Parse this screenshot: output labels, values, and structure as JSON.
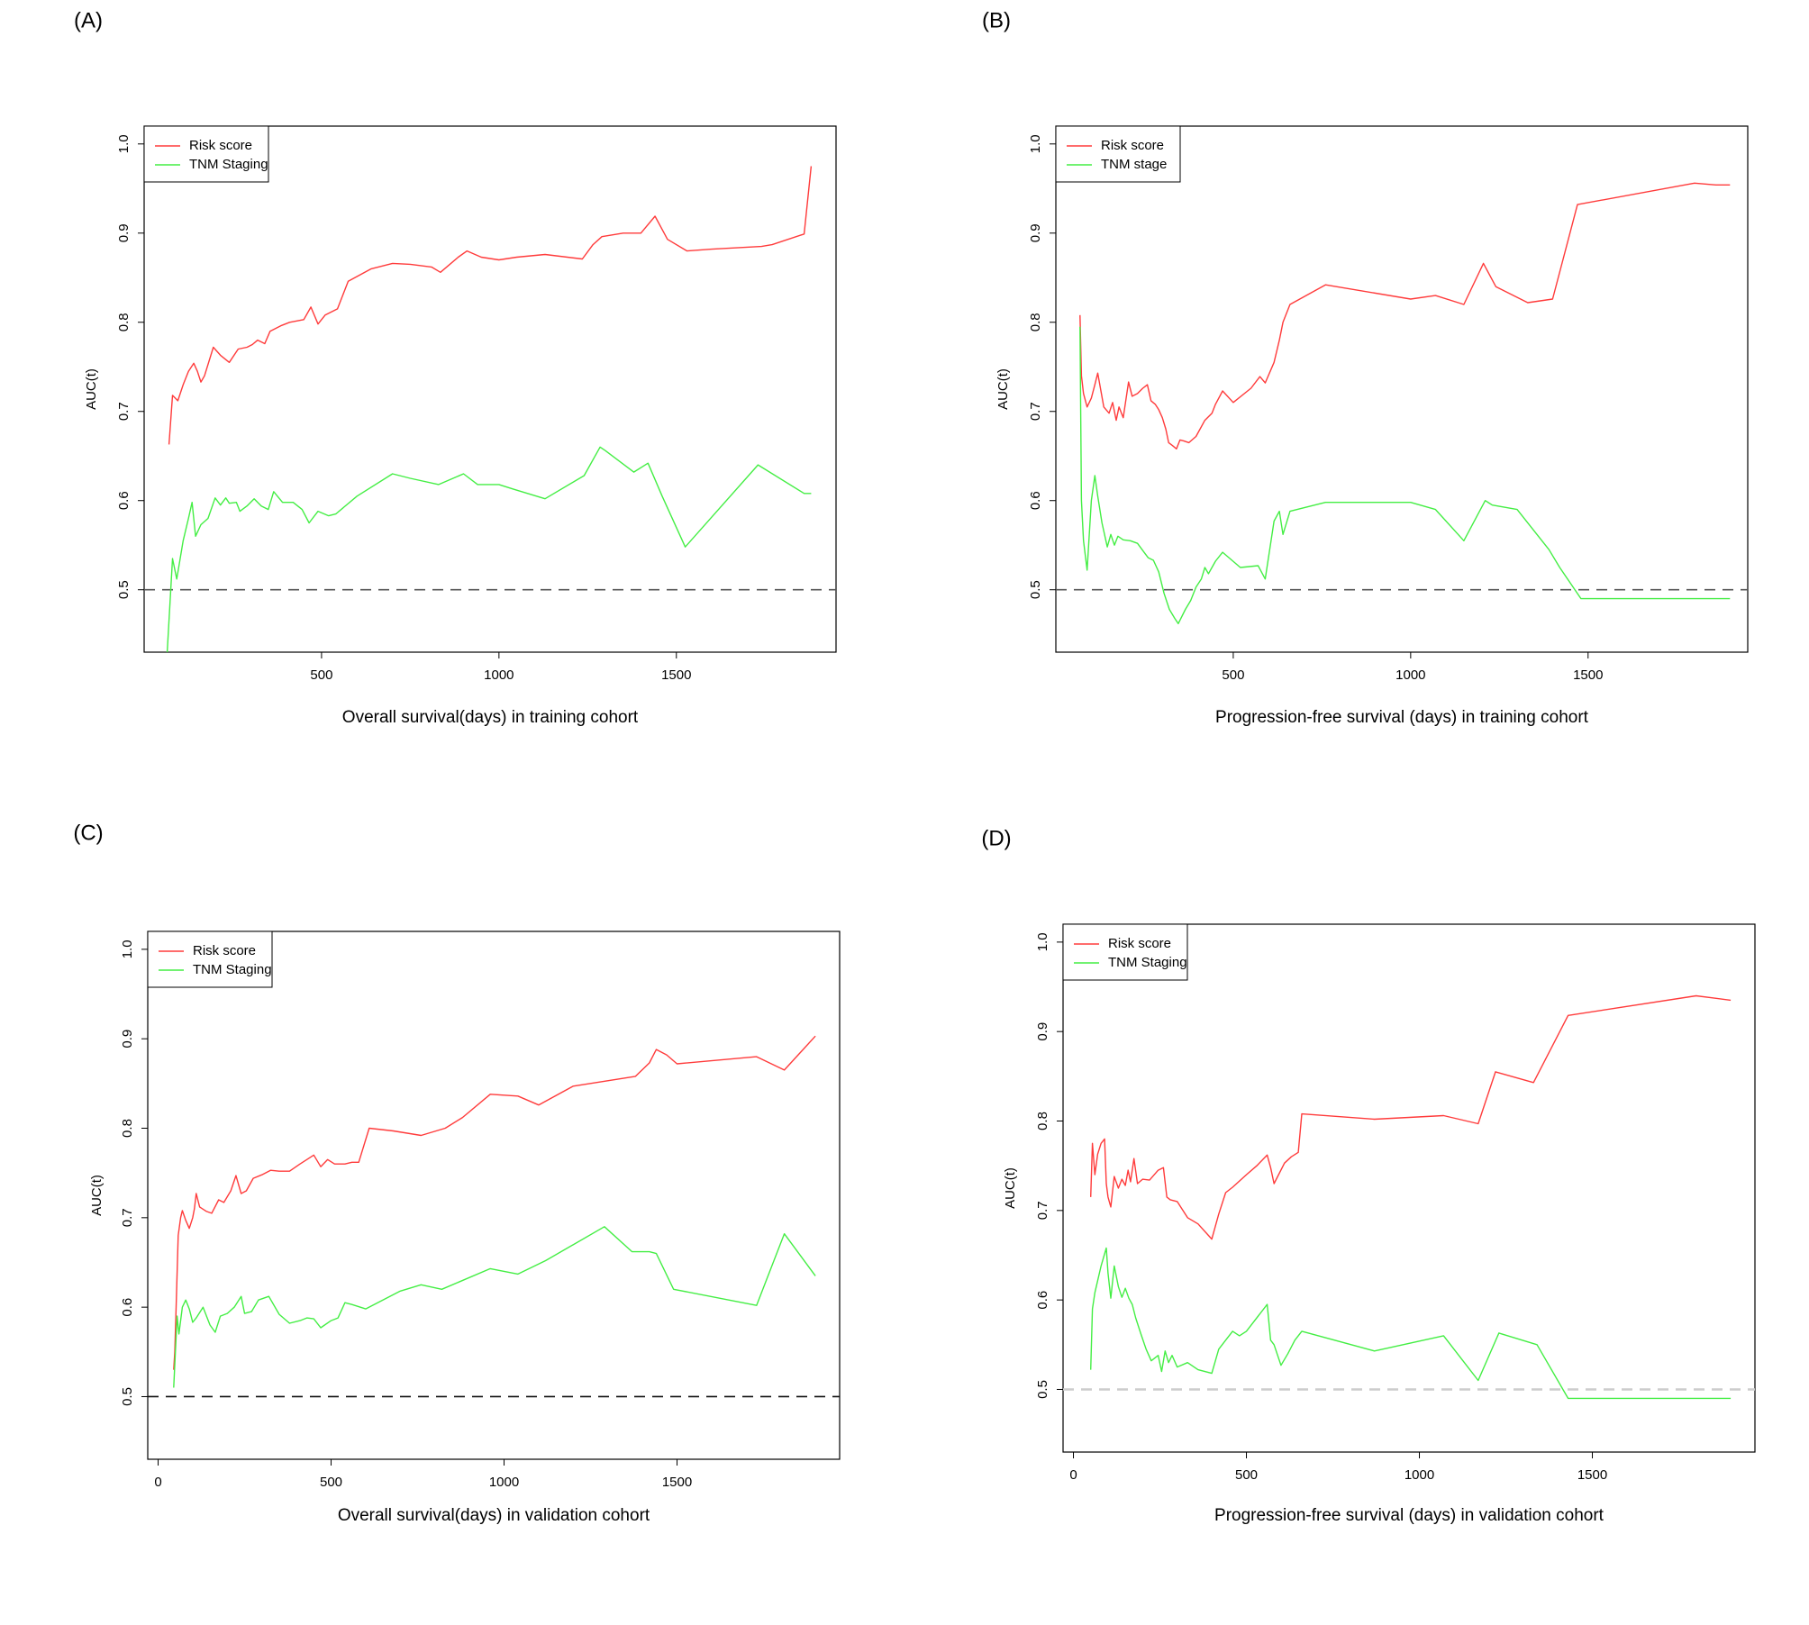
{
  "chart_data": [
    {
      "panel": "(A)",
      "type": "line",
      "xlabel": "Overall survival(days) in training cohort",
      "ylabel": "AUC(t)",
      "xticks": [
        "500",
        "1000",
        "1500"
      ],
      "yticks": [
        "0.5",
        "0.6",
        "0.7",
        "0.8",
        "0.9",
        "1.0"
      ],
      "xlim": [
        0,
        1950
      ],
      "ylim": [
        0.43,
        1.02
      ],
      "reference_line": 0.5,
      "reference_color": "#555555",
      "legend": "top-left",
      "series": [
        {
          "name": "Risk score",
          "color": "#ff3b3b",
          "x": [
            70,
            80,
            95,
            110,
            125,
            140,
            150,
            160,
            170,
            195,
            215,
            240,
            265,
            290,
            305,
            320,
            340,
            355,
            370,
            385,
            410,
            450,
            470,
            490,
            510,
            545,
            575,
            640,
            700,
            750,
            810,
            835,
            885,
            910,
            950,
            1000,
            1050,
            1130,
            1235,
            1265,
            1290,
            1350,
            1400,
            1440,
            1475,
            1530,
            1600,
            1740,
            1770,
            1860,
            1880
          ],
          "y": [
            0.663,
            0.718,
            0.712,
            0.73,
            0.745,
            0.754,
            0.745,
            0.733,
            0.74,
            0.772,
            0.763,
            0.755,
            0.77,
            0.772,
            0.775,
            0.78,
            0.776,
            0.79,
            0.793,
            0.796,
            0.8,
            0.803,
            0.817,
            0.798,
            0.808,
            0.815,
            0.846,
            0.86,
            0.866,
            0.865,
            0.862,
            0.856,
            0.873,
            0.88,
            0.873,
            0.87,
            0.873,
            0.876,
            0.871,
            0.887,
            0.896,
            0.9,
            0.9,
            0.919,
            0.893,
            0.88,
            0.882,
            0.885,
            0.887,
            0.899,
            0.975
          ]
        },
        {
          "name": "TNM Staging",
          "color": "#44ee44",
          "x": [
            65,
            80,
            92,
            110,
            125,
            135,
            145,
            160,
            180,
            200,
            215,
            230,
            240,
            260,
            270,
            290,
            310,
            330,
            350,
            365,
            390,
            420,
            445,
            465,
            490,
            520,
            540,
            600,
            700,
            750,
            830,
            900,
            940,
            1000,
            1040,
            1130,
            1240,
            1285,
            1300,
            1380,
            1420,
            1460,
            1525,
            1730,
            1860,
            1880
          ],
          "y": [
            0.43,
            0.535,
            0.512,
            0.555,
            0.58,
            0.598,
            0.56,
            0.573,
            0.58,
            0.603,
            0.595,
            0.603,
            0.597,
            0.598,
            0.588,
            0.594,
            0.602,
            0.594,
            0.59,
            0.61,
            0.598,
            0.598,
            0.59,
            0.575,
            0.588,
            0.583,
            0.585,
            0.605,
            0.63,
            0.625,
            0.618,
            0.63,
            0.618,
            0.618,
            0.613,
            0.602,
            0.628,
            0.66,
            0.656,
            0.632,
            0.642,
            0.605,
            0.548,
            0.64,
            0.608,
            0.608
          ]
        }
      ]
    },
    {
      "panel": "(B)",
      "type": "line",
      "xlabel": "Progression-free survival (days) in training cohort",
      "ylabel": "AUC(t)",
      "xticks": [
        "500",
        "1000",
        "1500"
      ],
      "yticks": [
        "0.5",
        "0.6",
        "0.7",
        "0.8",
        "0.9",
        "1.0"
      ],
      "xlim": [
        0,
        1950
      ],
      "ylim": [
        0.43,
        1.02
      ],
      "reference_line": 0.5,
      "reference_color": "#555555",
      "legend": "top-left",
      "series": [
        {
          "name": "Risk score",
          "color": "#ff3b3b",
          "x": [
            68,
            72,
            78,
            88,
            100,
            110,
            118,
            135,
            150,
            160,
            170,
            178,
            190,
            205,
            215,
            230,
            245,
            258,
            268,
            280,
            290,
            300,
            310,
            318,
            328,
            340,
            350,
            360,
            375,
            395,
            420,
            440,
            450,
            470,
            500,
            550,
            575,
            590,
            615,
            630,
            640,
            660,
            760,
            1000,
            1070,
            1150,
            1205,
            1240,
            1330,
            1400,
            1470,
            1800,
            1860,
            1900
          ],
          "y": [
            0.808,
            0.74,
            0.72,
            0.705,
            0.715,
            0.73,
            0.743,
            0.705,
            0.698,
            0.71,
            0.69,
            0.705,
            0.693,
            0.733,
            0.717,
            0.72,
            0.726,
            0.73,
            0.712,
            0.708,
            0.702,
            0.693,
            0.68,
            0.665,
            0.662,
            0.658,
            0.668,
            0.667,
            0.665,
            0.672,
            0.69,
            0.698,
            0.708,
            0.723,
            0.71,
            0.726,
            0.739,
            0.732,
            0.755,
            0.78,
            0.8,
            0.82,
            0.842,
            0.826,
            0.83,
            0.82,
            0.866,
            0.84,
            0.822,
            0.826,
            0.932,
            0.956,
            0.954,
            0.954
          ]
        },
        {
          "name": "TNM stage",
          "color": "#44ee44",
          "x": [
            68,
            72,
            78,
            88,
            100,
            110,
            118,
            130,
            145,
            155,
            165,
            175,
            190,
            210,
            230,
            260,
            275,
            290,
            305,
            320,
            335,
            345,
            365,
            380,
            395,
            410,
            420,
            430,
            450,
            470,
            520,
            570,
            590,
            615,
            630,
            640,
            660,
            760,
            1000,
            1070,
            1150,
            1210,
            1230,
            1300,
            1390,
            1420,
            1480,
            1900
          ],
          "y": [
            0.795,
            0.6,
            0.555,
            0.522,
            0.6,
            0.628,
            0.605,
            0.575,
            0.548,
            0.562,
            0.55,
            0.56,
            0.556,
            0.555,
            0.552,
            0.536,
            0.533,
            0.52,
            0.496,
            0.478,
            0.468,
            0.462,
            0.478,
            0.488,
            0.503,
            0.512,
            0.525,
            0.518,
            0.532,
            0.542,
            0.525,
            0.527,
            0.512,
            0.577,
            0.588,
            0.562,
            0.588,
            0.598,
            0.598,
            0.59,
            0.555,
            0.6,
            0.595,
            0.59,
            0.545,
            0.525,
            0.49,
            0.49
          ]
        }
      ]
    },
    {
      "panel": "(C)",
      "type": "line",
      "xlabel": "Overall survival(days) in validation cohort",
      "ylabel": "AUC(t)",
      "xticks": [
        "0",
        "500",
        "1000",
        "1500"
      ],
      "yticks": [
        "0.5",
        "0.6",
        "0.7",
        "0.8",
        "0.9",
        "1.0"
      ],
      "xlim": [
        -30,
        1970
      ],
      "ylim": [
        0.43,
        1.02
      ],
      "reference_line": 0.5,
      "reference_color": "#111111",
      "legend": "top-left",
      "series": [
        {
          "name": "Risk score",
          "color": "#ff3b3b",
          "x": [
            45,
            48,
            52,
            58,
            65,
            70,
            80,
            90,
            100,
            105,
            110,
            120,
            140,
            155,
            175,
            190,
            210,
            225,
            240,
            255,
            275,
            300,
            325,
            350,
            380,
            410,
            430,
            450,
            470,
            490,
            510,
            540,
            560,
            580,
            610,
            680,
            760,
            830,
            880,
            960,
            1040,
            1100,
            1200,
            1380,
            1420,
            1440,
            1470,
            1500,
            1730,
            1810,
            1900
          ],
          "y": [
            0.53,
            0.55,
            0.6,
            0.68,
            0.7,
            0.708,
            0.697,
            0.688,
            0.7,
            0.71,
            0.727,
            0.712,
            0.707,
            0.705,
            0.72,
            0.717,
            0.73,
            0.747,
            0.727,
            0.73,
            0.744,
            0.748,
            0.753,
            0.752,
            0.752,
            0.76,
            0.765,
            0.77,
            0.757,
            0.765,
            0.76,
            0.76,
            0.762,
            0.762,
            0.8,
            0.797,
            0.792,
            0.8,
            0.812,
            0.838,
            0.836,
            0.826,
            0.847,
            0.858,
            0.873,
            0.888,
            0.882,
            0.872,
            0.88,
            0.865,
            0.903
          ]
        },
        {
          "name": "TNM Staging",
          "color": "#44ee44",
          "x": [
            45,
            50,
            55,
            60,
            70,
            80,
            90,
            100,
            110,
            130,
            150,
            165,
            180,
            200,
            220,
            240,
            250,
            270,
            290,
            320,
            350,
            380,
            410,
            430,
            450,
            470,
            500,
            520,
            540,
            560,
            600,
            700,
            760,
            820,
            960,
            1040,
            1120,
            1290,
            1370,
            1420,
            1440,
            1490,
            1730,
            1810,
            1900
          ],
          "y": [
            0.51,
            0.55,
            0.59,
            0.57,
            0.6,
            0.608,
            0.598,
            0.583,
            0.588,
            0.6,
            0.58,
            0.572,
            0.59,
            0.593,
            0.6,
            0.612,
            0.593,
            0.595,
            0.608,
            0.612,
            0.592,
            0.582,
            0.585,
            0.588,
            0.587,
            0.577,
            0.585,
            0.588,
            0.605,
            0.603,
            0.598,
            0.618,
            0.625,
            0.62,
            0.643,
            0.637,
            0.652,
            0.69,
            0.662,
            0.662,
            0.66,
            0.62,
            0.602,
            0.682,
            0.635
          ]
        }
      ]
    },
    {
      "panel": "(D)",
      "type": "line",
      "xlabel": "Progression-free survival (days) in validation cohort",
      "ylabel": "AUC(t)",
      "xticks": [
        "0",
        "500",
        "1000",
        "1500"
      ],
      "yticks": [
        "0.5",
        "0.6",
        "0.7",
        "0.8",
        "0.9",
        "1.0"
      ],
      "xlim": [
        -30,
        1970
      ],
      "ylim": [
        0.43,
        1.02
      ],
      "reference_line": 0.5,
      "reference_color": "#cccccc",
      "legend": "top-left",
      "series": [
        {
          "name": "Risk score",
          "color": "#ff3b3b",
          "x": [
            50,
            55,
            62,
            70,
            80,
            90,
            95,
            100,
            108,
            118,
            130,
            140,
            150,
            158,
            165,
            175,
            185,
            200,
            220,
            245,
            260,
            270,
            280,
            300,
            330,
            360,
            400,
            420,
            440,
            460,
            480,
            500,
            530,
            560,
            570,
            580,
            610,
            630,
            650,
            660,
            870,
            1070,
            1170,
            1220,
            1330,
            1430,
            1800,
            1900
          ],
          "y": [
            0.715,
            0.775,
            0.74,
            0.763,
            0.775,
            0.78,
            0.73,
            0.715,
            0.704,
            0.738,
            0.725,
            0.735,
            0.728,
            0.745,
            0.732,
            0.758,
            0.73,
            0.735,
            0.734,
            0.745,
            0.748,
            0.715,
            0.712,
            0.71,
            0.692,
            0.685,
            0.668,
            0.696,
            0.72,
            0.726,
            0.733,
            0.74,
            0.75,
            0.762,
            0.748,
            0.73,
            0.753,
            0.76,
            0.765,
            0.808,
            0.802,
            0.806,
            0.797,
            0.855,
            0.843,
            0.918,
            0.94,
            0.935
          ]
        },
        {
          "name": "TNM Staging",
          "color": "#44ee44",
          "x": [
            50,
            55,
            62,
            80,
            95,
            100,
            108,
            118,
            130,
            140,
            150,
            160,
            170,
            180,
            195,
            210,
            225,
            245,
            255,
            265,
            275,
            285,
            300,
            330,
            360,
            400,
            420,
            440,
            460,
            480,
            500,
            560,
            570,
            580,
            600,
            620,
            640,
            660,
            870,
            1070,
            1170,
            1230,
            1340,
            1430,
            1900
          ],
          "y": [
            0.522,
            0.59,
            0.608,
            0.638,
            0.658,
            0.63,
            0.602,
            0.638,
            0.615,
            0.603,
            0.613,
            0.602,
            0.595,
            0.58,
            0.562,
            0.545,
            0.532,
            0.538,
            0.52,
            0.543,
            0.53,
            0.538,
            0.525,
            0.53,
            0.522,
            0.518,
            0.545,
            0.555,
            0.565,
            0.56,
            0.565,
            0.595,
            0.555,
            0.55,
            0.527,
            0.54,
            0.555,
            0.565,
            0.543,
            0.56,
            0.51,
            0.563,
            0.55,
            0.49,
            0.49
          ]
        }
      ]
    }
  ]
}
